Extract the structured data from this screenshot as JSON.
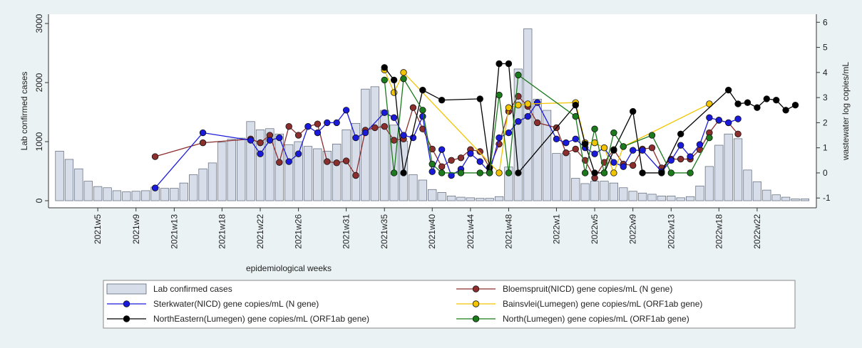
{
  "chart_data": {
    "type": "combo",
    "x_label": "epidemiological weeks",
    "y_label": "Lab confirmed cases",
    "y2_label": "wastewater log copies/mL",
    "xlim": [
      -1.16,
      79.2
    ],
    "ylim": [
      -120,
      3157
    ],
    "y2lim": [
      -1.39,
      6.32
    ],
    "xticks": [
      {
        "value": 4,
        "label": "2021w5"
      },
      {
        "value": 8,
        "label": "2021w9"
      },
      {
        "value": 12,
        "label": "2021w13"
      },
      {
        "value": 17,
        "label": "2021w18"
      },
      {
        "value": 21,
        "label": "2021w22"
      },
      {
        "value": 25,
        "label": "2021w26"
      },
      {
        "value": 30,
        "label": "2021w31"
      },
      {
        "value": 34,
        "label": "2021w35"
      },
      {
        "value": 39,
        "label": "2021w40"
      },
      {
        "value": 43,
        "label": "2021w44"
      },
      {
        "value": 47,
        "label": "2021w48"
      },
      {
        "value": 52,
        "label": "2022w1"
      },
      {
        "value": 56,
        "label": "2022w5"
      },
      {
        "value": 60,
        "label": "2022w9"
      },
      {
        "value": 64,
        "label": "2022w13"
      },
      {
        "value": 69,
        "label": "2022w18"
      },
      {
        "value": 73,
        "label": "2022w22"
      }
    ],
    "yticks": [
      0,
      1000,
      2000,
      3000
    ],
    "y2ticks": [
      -1,
      0,
      1,
      2,
      3,
      4,
      5,
      6
    ],
    "grid": false,
    "series": [
      {
        "name": "Lab confirmed cases",
        "type": "bar",
        "axis": "y",
        "color": "#d8dee9",
        "x": [
          0,
          1,
          2,
          3,
          4,
          5,
          6,
          7,
          8,
          9,
          10,
          11,
          12,
          13,
          14,
          15,
          16,
          17,
          18,
          19,
          20,
          21,
          22,
          23,
          24,
          25,
          26,
          27,
          28,
          29,
          30,
          31,
          32,
          33,
          34,
          35,
          36,
          37,
          38,
          39,
          40,
          41,
          42,
          43,
          44,
          45,
          46,
          47,
          48,
          49,
          50,
          51,
          52,
          53,
          54,
          55,
          56,
          57,
          58,
          59,
          60,
          61,
          62,
          63,
          64,
          65,
          66,
          67,
          68,
          69,
          70,
          71,
          72,
          73,
          74,
          75,
          76,
          77,
          78
        ],
        "values": [
          840,
          700,
          540,
          330,
          240,
          220,
          170,
          150,
          160,
          170,
          230,
          210,
          210,
          300,
          440,
          540,
          640,
          990,
          1040,
          1060,
          1340,
          1200,
          1220,
          1130,
          950,
          1000,
          920,
          880,
          840,
          960,
          1200,
          1310,
          1890,
          1930,
          1530,
          1280,
          1010,
          440,
          350,
          190,
          140,
          80,
          60,
          50,
          40,
          40,
          70,
          570,
          2230,
          2910,
          1720,
          1530,
          800,
          800,
          380,
          290,
          330,
          330,
          300,
          220,
          160,
          130,
          110,
          80,
          80,
          50,
          70,
          250,
          580,
          940,
          1130,
          1050,
          520,
          320,
          180,
          100,
          60,
          30,
          30
        ]
      },
      {
        "name": "Bloemspruit(NICD) gene copies/mL (N gene)",
        "type": "line",
        "axis": "y2",
        "color": "#8b2e2e",
        "x": [
          10,
          15,
          20,
          21,
          22,
          23,
          24,
          25,
          26,
          27,
          28,
          29,
          30,
          31,
          32,
          33,
          34,
          35,
          36,
          37,
          38,
          39,
          40,
          41,
          42,
          43,
          44,
          45,
          46,
          47,
          48,
          49,
          50,
          52,
          53,
          54,
          55,
          56,
          57,
          58,
          59,
          60,
          61,
          62,
          63,
          64,
          65,
          66,
          67,
          68,
          69,
          70,
          71
        ],
        "values": [
          0.65,
          1.2,
          1.35,
          1.2,
          1.5,
          0.42,
          1.85,
          1.5,
          1.85,
          1.95,
          0.45,
          0.4,
          0.48,
          -0.1,
          1.7,
          1.8,
          1.85,
          1.3,
          1.35,
          2.6,
          1.75,
          0.95,
          0.25,
          0.5,
          0.6,
          0.93,
          0.85,
          0.22,
          1.15,
          2.45,
          3.05,
          2.65,
          2.0,
          1.8,
          0.8,
          0.95,
          0.5,
          -0.2,
          0.42,
          0.93,
          0.35,
          0.3,
          0.95,
          1.0,
          0.2,
          0.55,
          0.55,
          0.55,
          0.93,
          1.6,
          2.1,
          2.0,
          1.55
        ]
      },
      {
        "name": "Sterkwater(NICD) gene copies/mL (N gene)",
        "type": "line",
        "axis": "y2",
        "color": "#1a1adb",
        "x": [
          10,
          15,
          20,
          21,
          22,
          23,
          24,
          25,
          26,
          27,
          28,
          29,
          30,
          31,
          32,
          34,
          35,
          36,
          37,
          38,
          39,
          40,
          41,
          42,
          43,
          44,
          45,
          46,
          47,
          48,
          49,
          50,
          52,
          53,
          54,
          55,
          56,
          57,
          58,
          59,
          60,
          61,
          63,
          64,
          65,
          66,
          67,
          68,
          69,
          70,
          71
        ],
        "values": [
          -0.6,
          1.6,
          1.3,
          0.76,
          1.3,
          1.4,
          0.45,
          0.76,
          1.85,
          1.6,
          2.0,
          2.0,
          2.5,
          1.4,
          1.6,
          2.4,
          2.2,
          1.5,
          1.4,
          2.25,
          0.05,
          0.93,
          -0.1,
          0.15,
          0.77,
          0.45,
          0.03,
          1.4,
          1.6,
          2.05,
          2.25,
          2.8,
          1.35,
          1.2,
          1.35,
          1.0,
          0.76,
          1.0,
          0.42,
          0.25,
          0.9,
          0.9,
          0.05,
          0.5,
          1.1,
          0.65,
          1.13,
          2.2,
          2.1,
          2.0,
          2.15
        ]
      },
      {
        "name": "Bainsvlei(Lumegen) gene copies/mL (ORF1ab gene)",
        "type": "line",
        "axis": "y2",
        "color": "#f2c500",
        "x": [
          34,
          35,
          36,
          46,
          47,
          48,
          49,
          54,
          55,
          56,
          57,
          58,
          59,
          68
        ],
        "values": [
          4.1,
          3.2,
          4.0,
          0.0,
          2.6,
          2.7,
          2.75,
          2.8,
          1.2,
          1.2,
          1.0,
          0.0,
          1.05,
          2.75
        ]
      },
      {
        "name": "NorthEastern(Lumegen) gene copies/mL (ORF1ab gene)",
        "type": "line",
        "axis": "y2",
        "color": "#000000",
        "x": [
          34,
          35,
          36,
          38,
          40,
          44,
          45,
          46,
          47,
          48,
          54,
          55,
          56,
          57,
          58,
          60,
          61,
          63,
          65,
          70,
          71,
          72,
          73,
          74,
          75,
          76,
          77
        ],
        "values": [
          4.2,
          3.7,
          0.0,
          3.3,
          2.9,
          2.95,
          0.2,
          4.35,
          4.35,
          0.0,
          2.7,
          1.15,
          0.0,
          0.0,
          0.9,
          2.45,
          0.0,
          0.0,
          1.55,
          3.3,
          2.75,
          2.8,
          2.6,
          2.95,
          2.9,
          2.5,
          2.7
        ]
      },
      {
        "name": "North(Lumegen) gene copies/mL (ORF1ab gene)",
        "type": "line",
        "axis": "y2",
        "color": "#1b7a1b",
        "x": [
          34,
          35,
          36,
          38,
          39,
          40,
          42,
          44,
          45,
          46,
          47,
          48,
          54,
          55,
          56,
          57,
          58,
          59,
          62,
          64,
          66,
          68
        ],
        "values": [
          3.7,
          0.0,
          3.75,
          2.5,
          0.35,
          0.0,
          0.0,
          0.0,
          0.0,
          3.1,
          0.0,
          3.9,
          2.25,
          0.0,
          1.75,
          0.0,
          1.6,
          1.05,
          1.5,
          0.0,
          0.0,
          1.4
        ]
      }
    ]
  }
}
